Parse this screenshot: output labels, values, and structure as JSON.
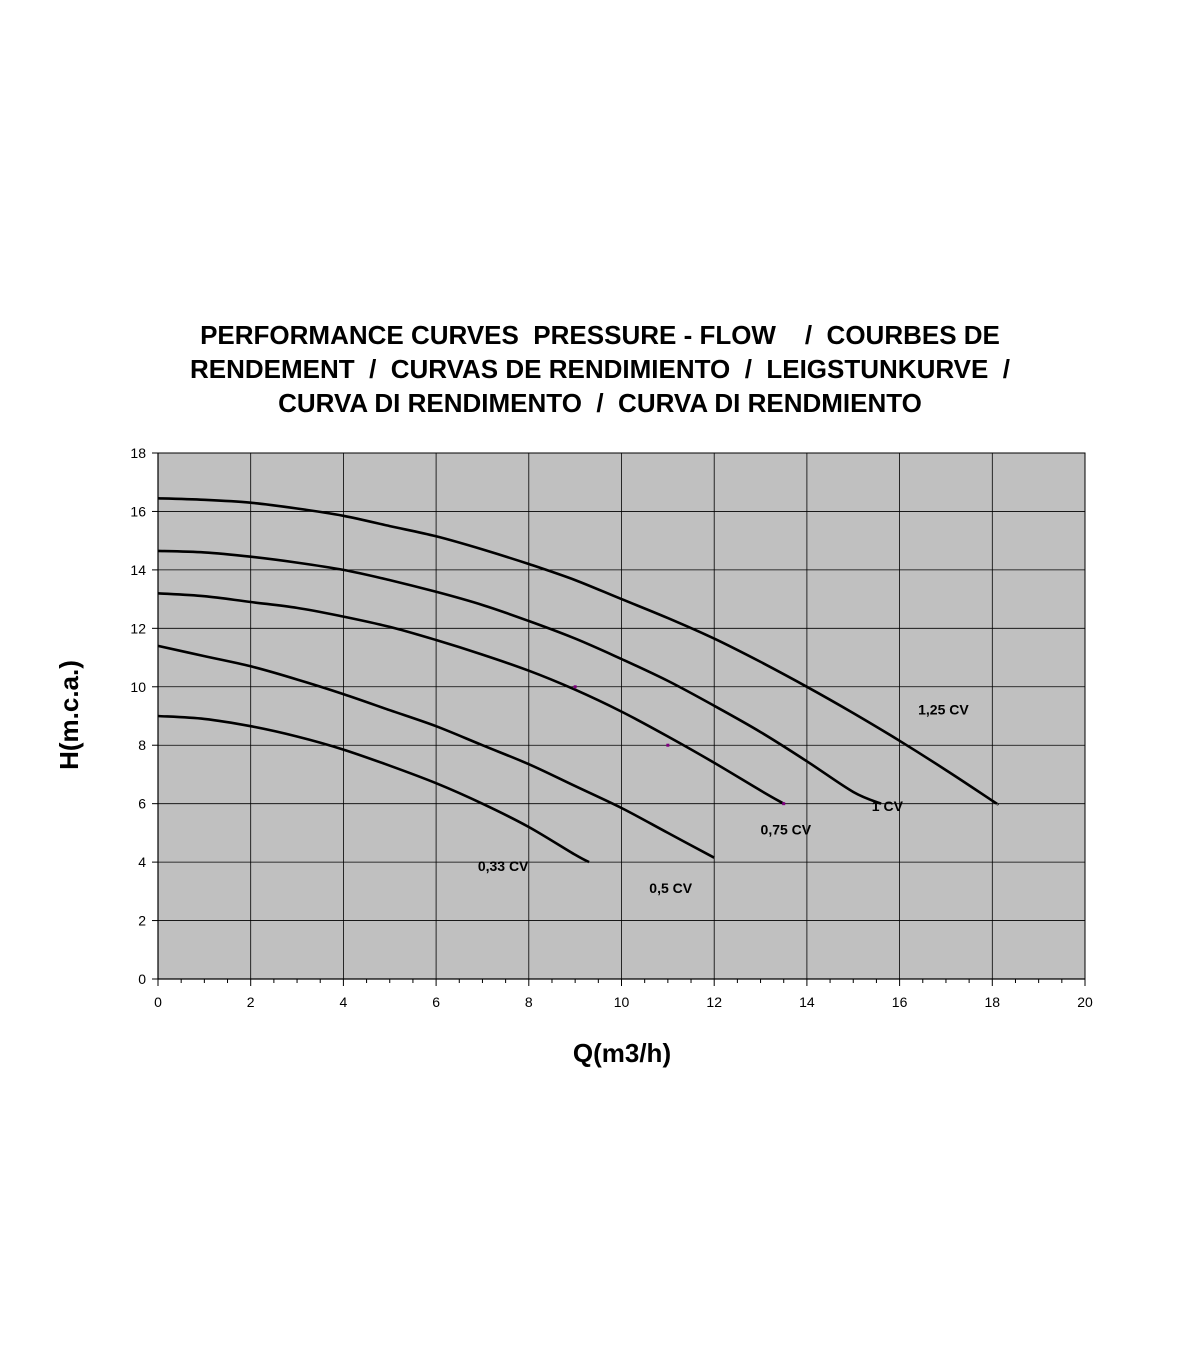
{
  "chart_data": {
    "type": "line",
    "title_lines": [
      "PERFORMANCE CURVES  PRESSURE - FLOW    /  COURBES DE",
      "RENDEMENT  /  CURVAS DE RENDIMIENTO  /  LEIGSTUNKURVE  /",
      "CURVA DI RENDIMENTO  /  CURVA DI RENDMIENTO"
    ],
    "xlabel": "Q(m3/h)",
    "ylabel": "H(m.c.a.)",
    "xlim": [
      0,
      20
    ],
    "ylim": [
      0,
      18
    ],
    "x_major_ticks": [
      0,
      2,
      4,
      6,
      8,
      10,
      12,
      14,
      16,
      18,
      20
    ],
    "x_minor_step": 0.5,
    "y_ticks": [
      0,
      2,
      4,
      6,
      8,
      10,
      12,
      14,
      16,
      18
    ],
    "grid": true,
    "plot_background": "#c0c0c0",
    "line_color": "#000000",
    "series": [
      {
        "name": "0,33 CV",
        "label_at": [
          6.9,
          3.7
        ],
        "points": [
          [
            0,
            9.0
          ],
          [
            1,
            8.9
          ],
          [
            2,
            8.65
          ],
          [
            3,
            8.3
          ],
          [
            4,
            7.85
          ],
          [
            5,
            7.3
          ],
          [
            6,
            6.7
          ],
          [
            7,
            6.0
          ],
          [
            8,
            5.2
          ],
          [
            9,
            4.25
          ],
          [
            9.3,
            4.0
          ]
        ]
      },
      {
        "name": "0,5 CV",
        "label_at": [
          10.6,
          2.95
        ],
        "points": [
          [
            0,
            11.4
          ],
          [
            1,
            11.05
          ],
          [
            2,
            10.7
          ],
          [
            3,
            10.25
          ],
          [
            4,
            9.75
          ],
          [
            5,
            9.2
          ],
          [
            6,
            8.65
          ],
          [
            7,
            8.0
          ],
          [
            8,
            7.35
          ],
          [
            9,
            6.6
          ],
          [
            10,
            5.85
          ],
          [
            11,
            5.0
          ],
          [
            12,
            4.15
          ]
        ]
      },
      {
        "name": "0,75 CV",
        "label_at": [
          13.0,
          4.95
        ],
        "points": [
          [
            0,
            13.2
          ],
          [
            1,
            13.1
          ],
          [
            2,
            12.9
          ],
          [
            3,
            12.7
          ],
          [
            4,
            12.4
          ],
          [
            5,
            12.05
          ],
          [
            6,
            11.6
          ],
          [
            7,
            11.1
          ],
          [
            8,
            10.55
          ],
          [
            9,
            9.9
          ],
          [
            10,
            9.15
          ],
          [
            11,
            8.3
          ],
          [
            12,
            7.4
          ],
          [
            13,
            6.45
          ],
          [
            13.5,
            6.0
          ]
        ]
      },
      {
        "name": "1 CV",
        "label_at": [
          15.4,
          5.75
        ],
        "points": [
          [
            0,
            14.65
          ],
          [
            1,
            14.6
          ],
          [
            2,
            14.45
          ],
          [
            3,
            14.25
          ],
          [
            4,
            14.0
          ],
          [
            5,
            13.65
          ],
          [
            6,
            13.25
          ],
          [
            7,
            12.8
          ],
          [
            8,
            12.25
          ],
          [
            9,
            11.65
          ],
          [
            10,
            10.95
          ],
          [
            11,
            10.2
          ],
          [
            12,
            9.35
          ],
          [
            13,
            8.45
          ],
          [
            14,
            7.45
          ],
          [
            15,
            6.4
          ],
          [
            15.6,
            6.0
          ]
        ]
      },
      {
        "name": "1,25 CV",
        "label_at": [
          16.4,
          9.05
        ],
        "points": [
          [
            0,
            16.45
          ],
          [
            1,
            16.4
          ],
          [
            2,
            16.3
          ],
          [
            3,
            16.1
          ],
          [
            4,
            15.85
          ],
          [
            5,
            15.5
          ],
          [
            6,
            15.15
          ],
          [
            7,
            14.7
          ],
          [
            8,
            14.2
          ],
          [
            9,
            13.65
          ],
          [
            10,
            13.0
          ],
          [
            11,
            12.35
          ],
          [
            12,
            11.65
          ],
          [
            13,
            10.85
          ],
          [
            14,
            10.0
          ],
          [
            15,
            9.1
          ],
          [
            16,
            8.15
          ],
          [
            17,
            7.15
          ],
          [
            18,
            6.1
          ],
          [
            18.1,
            6.0
          ]
        ]
      }
    ],
    "markers": [
      {
        "x": 9,
        "y": 10,
        "color": "#800080"
      },
      {
        "x": 11,
        "y": 8,
        "color": "#800080"
      },
      {
        "x": 13.5,
        "y": 6,
        "color": "#800080"
      }
    ]
  }
}
